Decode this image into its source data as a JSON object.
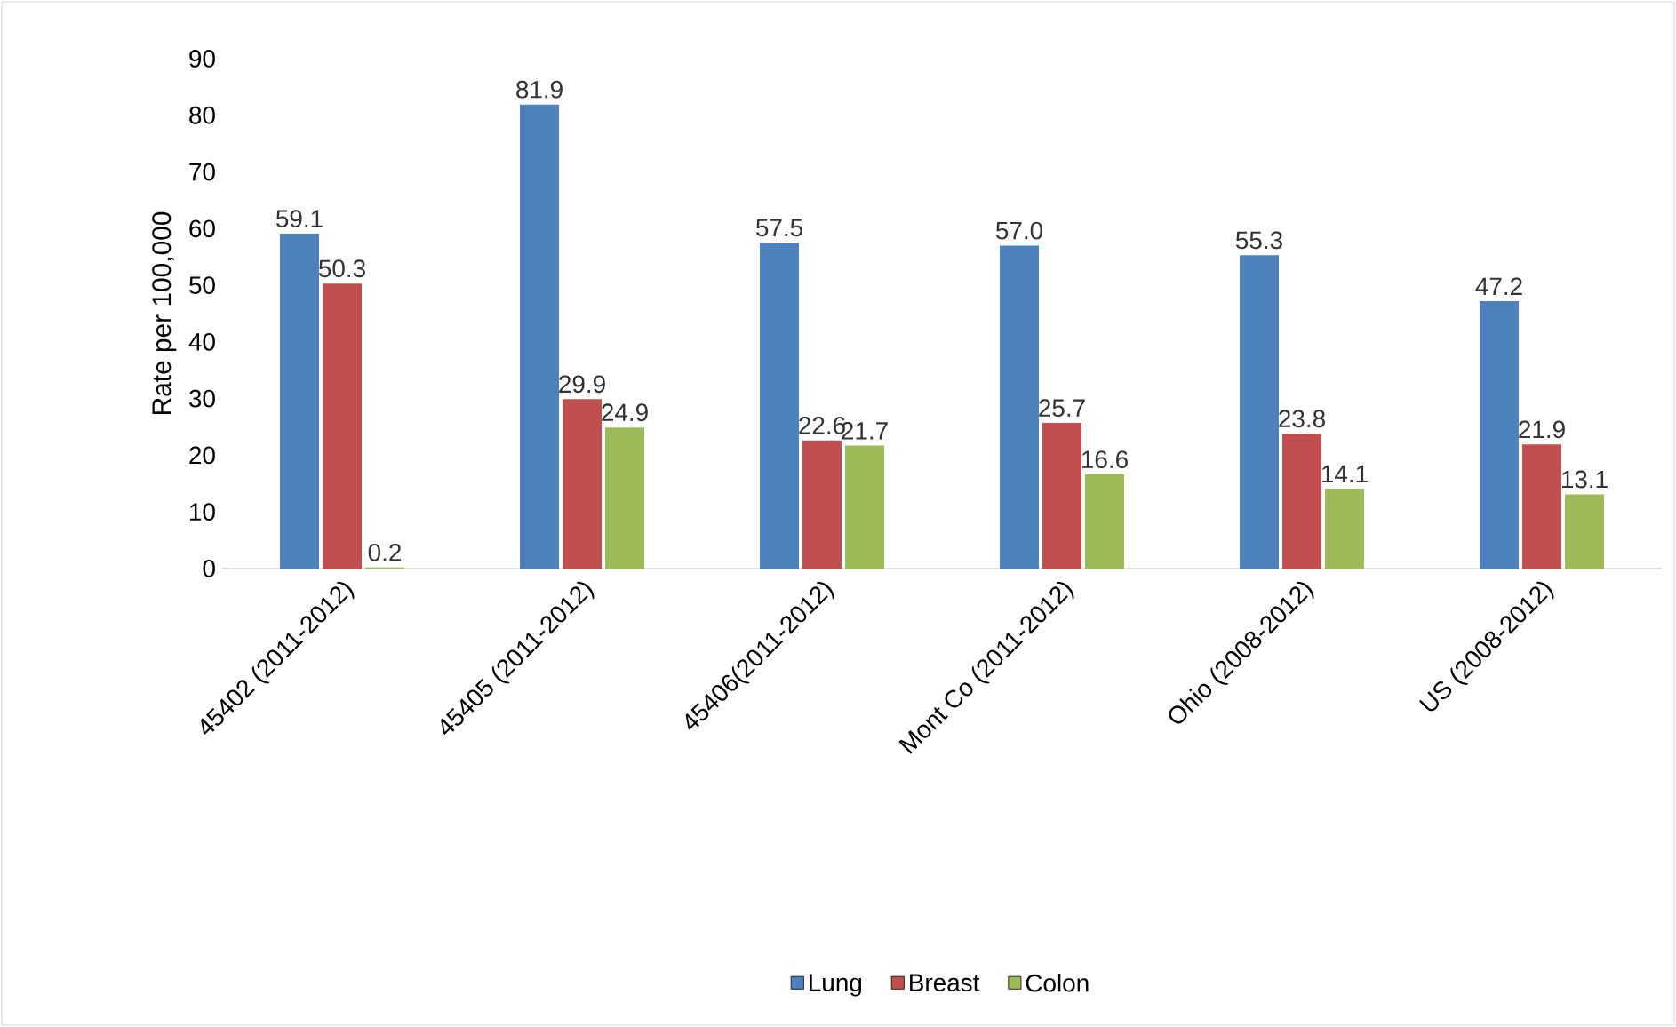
{
  "chart_data": {
    "type": "bar",
    "ylabel": "Rate per 100,000",
    "categories": [
      "45402 (2011-2012)",
      "45405 (2011-2012)",
      "45406(2011-2012)",
      "Mont Co (2011-2012)",
      "Ohio (2008-2012)",
      "US (2008-2012)"
    ],
    "series": [
      {
        "name": "Lung",
        "color": "#4f81bd",
        "values": [
          59.1,
          81.9,
          57.5,
          57.0,
          55.3,
          47.2
        ],
        "value_labels": [
          "59.1",
          "81.9",
          "57.5",
          "57.0",
          "55.3",
          "47.2"
        ]
      },
      {
        "name": "Breast",
        "color": "#c0504d",
        "values": [
          50.3,
          29.9,
          22.6,
          25.7,
          23.8,
          21.9
        ],
        "value_labels": [
          "50.3",
          "29.9",
          "22.6",
          "25.7",
          "23.8",
          "21.9"
        ]
      },
      {
        "name": "Colon",
        "color": "#9bbb59",
        "values": [
          0.2,
          24.9,
          21.7,
          16.6,
          14.1,
          13.1
        ],
        "value_labels": [
          "0.2",
          "24.9",
          "21.7",
          "16.6",
          "14.1",
          "13.1"
        ]
      }
    ],
    "ylim": [
      0,
      90
    ],
    "yticks": [
      0,
      10,
      20,
      30,
      40,
      50,
      60,
      70,
      80,
      90
    ],
    "legend": "bottom"
  }
}
